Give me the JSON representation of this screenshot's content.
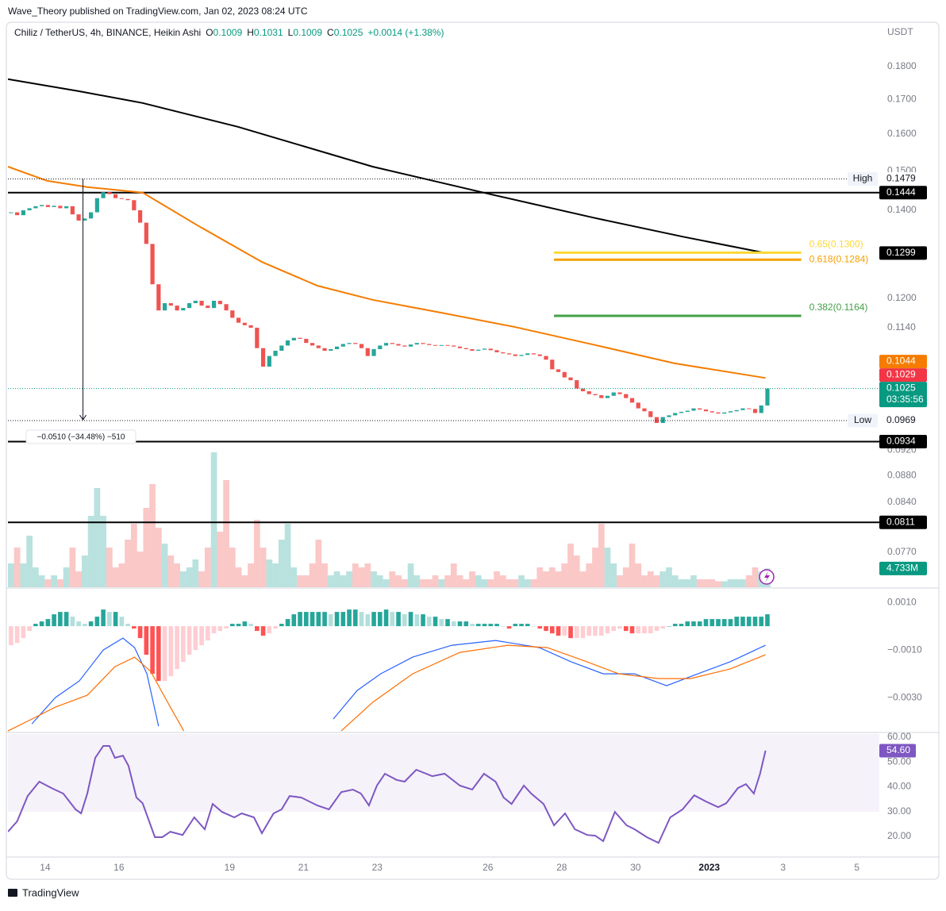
{
  "header": {
    "publisher": "Wave_Theory published on TradingView.com, Jan 02, 2023 08:24 UTC",
    "symbol": "Chiliz / TetherUS, 4h, BINANCE, Heikin Ashi",
    "ohlc": [
      {
        "key": "O",
        "value": "0.1009"
      },
      {
        "key": "H",
        "value": "0.1031"
      },
      {
        "key": "L",
        "value": "0.1009"
      },
      {
        "key": "C",
        "value": "0.1025"
      }
    ],
    "change": "+0.0014 (+1.38%)",
    "currency": "USDT"
  },
  "footer": {
    "brand": "TradingView"
  },
  "chart_data": [
    {
      "type": "candlestick",
      "log_scale": true,
      "up_color": "#26a69a",
      "down_color": "#ef5350",
      "xlim": [
        -0.5,
        141.2
      ],
      "xticks": [
        {
          "value": 5.55,
          "label": "14"
        },
        {
          "value": 17.55,
          "label": "16"
        },
        {
          "value": 35.55,
          "label": "19"
        },
        {
          "value": 47.55,
          "label": "21"
        },
        {
          "value": 59.55,
          "label": "23"
        },
        {
          "value": 77.55,
          "label": "26"
        },
        {
          "value": 89.55,
          "label": "28"
        },
        {
          "value": 101.55,
          "label": "30"
        },
        {
          "value": 113.55,
          "label": "2023"
        },
        {
          "value": 125.55,
          "label": "3"
        },
        {
          "value": 137.55,
          "label": "5"
        }
      ],
      "ylim": [
        0.0724,
        0.194
      ],
      "yticks": [
        {
          "value": 0.18,
          "label": "0.1800"
        },
        {
          "value": 0.17,
          "label": "0.1700"
        },
        {
          "value": 0.16,
          "label": "0.1600"
        },
        {
          "value": 0.15,
          "label": "0.1500"
        },
        {
          "value": 0.14,
          "label": "0.1400"
        },
        {
          "value": 0.12,
          "label": "0.1200"
        },
        {
          "value": 0.114,
          "label": "0.1140"
        },
        {
          "value": 0.092,
          "label": "0.0920"
        },
        {
          "value": 0.088,
          "label": "0.0880"
        },
        {
          "value": 0.084,
          "label": "0.0840"
        },
        {
          "value": 0.077,
          "label": "0.0770"
        }
      ],
      "close": [
        0.1395,
        0.1388,
        0.14,
        0.1405,
        0.141,
        0.1413,
        0.1408,
        0.1411,
        0.1405,
        0.141,
        0.139,
        0.1375,
        0.138,
        0.1395,
        0.143,
        0.1445,
        0.144,
        0.143,
        0.1428,
        0.1425,
        0.14,
        0.137,
        0.132,
        0.123,
        0.1175,
        0.119,
        0.1185,
        0.1175,
        0.118,
        0.119,
        0.1195,
        0.1185,
        0.118,
        0.1195,
        0.1188,
        0.1175,
        0.116,
        0.115,
        0.1145,
        0.114,
        0.11,
        0.1065,
        0.1085,
        0.1095,
        0.1105,
        0.1115,
        0.112,
        0.1118,
        0.111,
        0.1105,
        0.11,
        0.1095,
        0.1098,
        0.1103,
        0.1108,
        0.111,
        0.1108,
        0.11,
        0.1085,
        0.1098,
        0.1105,
        0.111,
        0.1108,
        0.1105,
        0.1103,
        0.1107,
        0.111,
        0.1108,
        0.1106,
        0.1105,
        0.1106,
        0.1105,
        0.1103,
        0.11,
        0.1098,
        0.1095,
        0.1097,
        0.1099,
        0.1096,
        0.1092,
        0.109,
        0.1088,
        0.1085,
        0.1087,
        0.109,
        0.1088,
        0.1085,
        0.1078,
        0.106,
        0.1055,
        0.1045,
        0.104,
        0.1025,
        0.102,
        0.1015,
        0.1013,
        0.1008,
        0.1012,
        0.1018,
        0.1015,
        0.1008,
        0.1,
        0.099,
        0.0985,
        0.0975,
        0.0965,
        0.0975,
        0.0978,
        0.0982,
        0.0984,
        0.0986,
        0.099,
        0.0988,
        0.0985,
        0.0983,
        0.0981,
        0.0983,
        0.0985,
        0.0987,
        0.099,
        0.0989,
        0.0982,
        0.0995,
        0.1025
      ],
      "lines": [
        {
          "color": "#000000",
          "x": [
            -0.5,
            11.1,
            21.4,
            36.9,
            58.8,
            78.2,
            95.0,
            109.2,
            122.7
          ],
          "values": [
            0.1761,
            0.1724,
            0.1689,
            0.162,
            0.1511,
            0.1439,
            0.1381,
            0.1337,
            0.1299
          ]
        },
        {
          "color": "#f57c00",
          "x": [
            -0.5,
            5.9,
            12.4,
            21.4,
            30.5,
            40.8,
            49.8,
            58.8,
            70.5,
            82.1,
            95.0,
            107.9,
            122.7
          ],
          "values": [
            0.1511,
            0.1474,
            0.1458,
            0.1444,
            0.1362,
            0.1279,
            0.1227,
            0.1197,
            0.1169,
            0.1141,
            0.1106,
            0.1071,
            0.1044
          ]
        }
      ],
      "volume": {
        "ylim": [
          0,
          36
        ],
        "values": [
          6,
          10,
          6,
          13,
          5,
          3,
          2,
          3,
          2,
          5,
          10,
          4,
          8,
          18,
          25,
          18,
          10,
          5,
          6,
          12,
          16,
          9,
          20,
          26,
          15,
          11,
          8,
          6,
          4,
          5,
          7,
          4,
          10,
          34,
          14,
          27,
          10,
          5,
          3,
          6,
          17,
          10,
          7,
          6,
          12,
          16,
          5,
          3,
          3,
          6,
          12,
          6,
          3,
          4,
          3,
          4,
          6,
          5,
          6,
          4,
          3,
          2,
          4,
          3,
          2,
          6,
          3,
          2,
          2,
          3,
          2,
          3,
          6,
          3,
          2,
          4,
          3,
          2,
          2,
          4,
          3,
          2,
          2,
          3,
          2,
          2,
          5,
          4,
          5,
          4,
          6,
          11,
          8,
          4,
          6,
          10,
          16,
          10,
          6,
          3,
          5,
          11,
          6,
          3,
          4,
          3,
          4,
          5,
          3,
          2,
          2,
          3,
          2,
          2,
          2,
          1.5,
          1.5,
          2,
          2,
          2,
          3,
          5,
          4,
          4.733
        ],
        "last_label": {
          "value": 4.733,
          "label": "4.733M"
        },
        "color": "#089981"
      },
      "levels": [
        0.1444,
        0.0934,
        0.0811
      ],
      "fib": [
        {
          "label": "0.65(0.1300)",
          "value": 0.13,
          "color": "#fdd835",
          "xrange": [
            88.3,
            128.5
          ]
        },
        {
          "label": "0.618(0.1284)",
          "value": 0.1284,
          "color": "#f59f00",
          "xrange": [
            88.3,
            128.5
          ]
        },
        {
          "label": "0.382(0.1164)",
          "value": 0.1164,
          "color": "#43a047",
          "xrange": [
            88.3,
            128.5
          ]
        }
      ],
      "price_labels": [
        {
          "value": 0.1479,
          "label": "0.1479",
          "tag": "High",
          "style": "plain"
        },
        {
          "value": 0.1444,
          "label": "0.1444",
          "style": "#000000"
        },
        {
          "value": 0.1299,
          "label": "0.1299",
          "style": "#000000"
        },
        {
          "value": 0.1044,
          "label": "0.1044",
          "style": "#f57c00"
        },
        {
          "value": 0.1029,
          "label": "0.1029",
          "style": "#f23645"
        },
        {
          "value": 0.1025,
          "label": "0.1025",
          "countdown": "03:35:56",
          "style": "#089981"
        },
        {
          "value": 0.0969,
          "label": "0.0969",
          "tag": "Low",
          "style": "plain"
        },
        {
          "value": 0.0934,
          "label": "0.0934",
          "style": "#000000"
        },
        {
          "value": 0.0811,
          "label": "0.0811",
          "style": "#000000"
        }
      ],
      "measure": {
        "label": "−0.0510 (−34.48%) −510",
        "x": 11.7,
        "from": 0.1479,
        "to": 0.0969
      }
    },
    {
      "type": "macd",
      "ylim": [
        -0.00443,
        0.00157
      ],
      "yticks": [
        {
          "value": 0.001,
          "label": "0.0010"
        },
        {
          "value": -0.001,
          "label": "−0.0010"
        },
        {
          "value": -0.003,
          "label": "−0.0030"
        }
      ],
      "histogram": [
        -0.0008,
        -0.0007,
        -0.0005,
        -0.0002,
        0.0001,
        0.0002,
        0.0003,
        0.0005,
        0.0006,
        0.0006,
        0.0004,
        0.0002,
        0.0001,
        0.0002,
        0.0004,
        0.0007,
        0.0006,
        0.0006,
        0.0004,
        0.0001,
        -0.0001,
        -0.0005,
        -0.0012,
        -0.002,
        -0.0023,
        -0.0023,
        -0.0021,
        -0.0018,
        -0.0015,
        -0.0012,
        -0.001,
        -0.0008,
        -0.0006,
        -0.0003,
        -0.0002,
        -0.0001,
        0.0001,
        0.0001,
        0.0002,
        0.0001,
        -0.0002,
        -0.0004,
        -0.0003,
        -0.0001,
        0.0001,
        0.0003,
        0.0005,
        0.0006,
        0.0006,
        0.0006,
        0.0006,
        0.0006,
        0.0005,
        0.0006,
        0.0006,
        0.0007,
        0.0007,
        0.0006,
        0.0005,
        0.0006,
        0.0006,
        0.0007,
        0.0006,
        0.0006,
        0.0005,
        0.0006,
        0.0005,
        0.0005,
        0.0004,
        0.0004,
        0.0003,
        0.0003,
        0.0002,
        0.0002,
        0.0002,
        0.0001,
        0.0001,
        0.0001,
        0.0001,
        0.0001,
        0,
        -0.0001,
        0.0001,
        0.0001,
        0.0001,
        0,
        -0.0001,
        -0.0002,
        -0.0003,
        -0.0004,
        -0.0004,
        -0.0005,
        -0.0005,
        -0.0005,
        -0.0004,
        -0.0004,
        -0.0004,
        -0.0003,
        -0.0002,
        -0.0001,
        -0.0002,
        -0.0003,
        -0.0003,
        -0.0003,
        -0.0003,
        -0.0002,
        -0.0001,
        0,
        0.0001,
        0.0001,
        0.0002,
        0.0002,
        0.0002,
        0.0003,
        0.0003,
        0.0003,
        0.0003,
        0.0003,
        0.0004,
        0.0004,
        0.0004,
        0.0004,
        0.0004,
        0.0005
      ],
      "histogram_colors": [
        "#26a69a",
        "#b2dfdb",
        "#ffcdd2",
        "#ff5252"
      ],
      "series": [
        {
          "color": "#2962ff",
          "x": [
            3.4,
            7.2,
            11.1,
            15.0,
            18.2,
            20.1,
            22.1,
            24.0,
            null,
            52.4,
            56.3,
            60.1,
            65.3,
            71.7,
            78.8,
            85.9,
            91.1,
            96.3,
            101.4,
            106.6,
            111.7,
            116.9,
            122.7
          ],
          "values": [
            -0.0041,
            -0.003,
            -0.0023,
            -0.001,
            -0.0005,
            -0.0009,
            -0.002,
            -0.0042,
            null,
            -0.0039,
            -0.0027,
            -0.002,
            -0.0013,
            -0.0008,
            -0.0006,
            -0.0009,
            -0.0015,
            -0.002,
            -0.002,
            -0.0025,
            -0.002,
            -0.0015,
            -0.0008
          ]
        },
        {
          "color": "#ff6d00",
          "x": [
            -0.5,
            3.4,
            7.2,
            12.4,
            16.9,
            20.1,
            22.7,
            25.9,
            28.1,
            null,
            53.7,
            58.8,
            65.3,
            73.0,
            80.8,
            87.2,
            93.7,
            98.8,
            105.3,
            110.5,
            116.9,
            122.7
          ],
          "values": [
            -0.0044,
            -0.0039,
            -0.0034,
            -0.0029,
            -0.0017,
            -0.0013,
            -0.0019,
            -0.0034,
            -0.0044,
            null,
            -0.0044,
            -0.0032,
            -0.002,
            -0.0011,
            -0.0008,
            -0.0009,
            -0.0015,
            -0.002,
            -0.0022,
            -0.0022,
            -0.0018,
            -0.0012
          ]
        }
      ]
    },
    {
      "type": "rsi",
      "ylim": [
        11.7,
        61.3
      ],
      "band": [
        30,
        70
      ],
      "color": "#7e57c2",
      "yticks": [
        {
          "value": 60,
          "label": "60.00"
        },
        {
          "value": 50,
          "label": "50.00"
        },
        {
          "value": 40,
          "label": "40.00"
        },
        {
          "value": 30,
          "label": "30.00"
        },
        {
          "value": 20,
          "label": "20.00"
        }
      ],
      "x": [
        -0.5,
        1.0,
        2.7,
        4.6,
        6.6,
        8.5,
        10.5,
        11.4,
        12.4,
        13.7,
        15.0,
        16.0,
        16.9,
        18.2,
        19.1,
        20.4,
        21.4,
        23.4,
        24.6,
        25.9,
        27.9,
        29.8,
        31.5,
        32.8,
        34.3,
        36.3,
        37.5,
        39.5,
        40.8,
        42.7,
        44.0,
        45.3,
        47.2,
        49.8,
        51.7,
        53.7,
        55.6,
        56.9,
        58.2,
        59.5,
        60.8,
        62.7,
        64.0,
        65.9,
        68.5,
        70.5,
        73.0,
        75.0,
        76.9,
        78.8,
        80.1,
        81.4,
        83.4,
        84.6,
        86.6,
        88.3,
        90.1,
        91.7,
        93.7,
        95.0,
        96.3,
        98.2,
        100.1,
        101.4,
        103.4,
        105.3,
        107.2,
        109.2,
        111.1,
        113.0,
        115.0,
        116.3,
        118.2,
        119.5,
        120.8,
        121.8,
        122.7
      ],
      "values": [
        21.9,
        26.1,
        36.3,
        42.1,
        39.5,
        37.3,
        30.9,
        29.3,
        37.3,
        51.7,
        56.5,
        56.5,
        51.7,
        52.6,
        48.5,
        35.7,
        33.4,
        19.7,
        19.7,
        21.9,
        20.6,
        27.7,
        22.9,
        33.1,
        29.9,
        27.7,
        29.3,
        27.7,
        21.3,
        29.3,
        30.9,
        36.3,
        35.7,
        32.5,
        30.9,
        37.9,
        38.9,
        37.3,
        32.5,
        40.5,
        45.3,
        42.8,
        42.1,
        46.9,
        44.3,
        45.3,
        40.5,
        38.9,
        45.3,
        42.1,
        35.7,
        33.1,
        40.5,
        37.3,
        33.1,
        24.5,
        29.3,
        22.9,
        20.6,
        20.3,
        18.1,
        29.9,
        24.5,
        22.9,
        19.7,
        17.4,
        27.7,
        30.9,
        36.6,
        34.1,
        31.8,
        33.4,
        39.5,
        41.1,
        37.3,
        45.3,
        54.6
      ],
      "last_label": {
        "value": 54.6,
        "label": "54.60"
      }
    }
  ]
}
